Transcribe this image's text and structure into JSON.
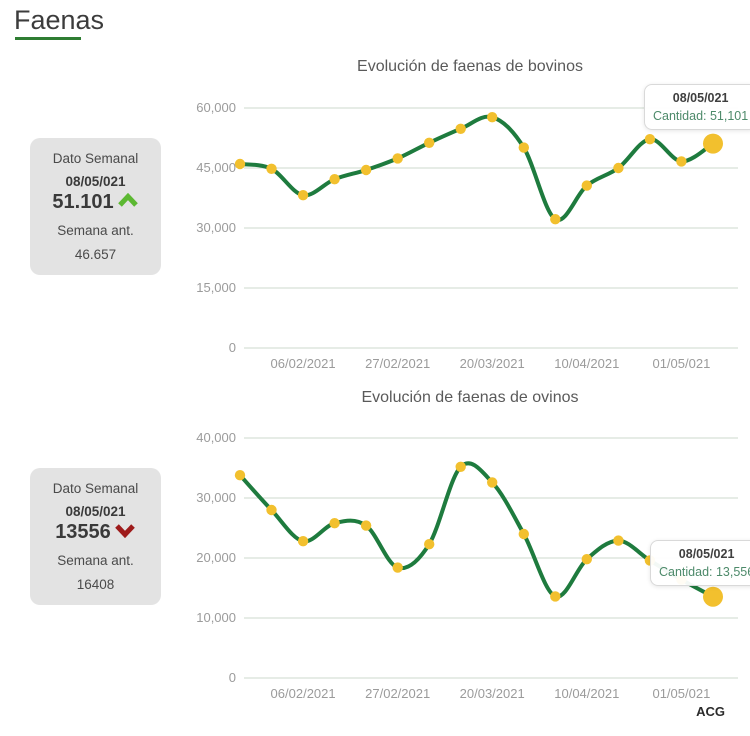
{
  "page": {
    "title": "Faenas",
    "footer": "ACG"
  },
  "colors": {
    "trend_up": "#5cb832",
    "trend_down": "#9e1b1b",
    "line_green": "#1e7b3e",
    "marker_gold": "#f2c02e",
    "accent_underline": "#2e7d32"
  },
  "weekly_cards": [
    {
      "label": "Dato Semanal",
      "date": "08/05/021",
      "value": "51.101",
      "trend": "up",
      "prev_label": "Semana ant.",
      "prev_value": "46.657"
    },
    {
      "label": "Dato Semanal",
      "date": "08/05/021",
      "value": "13556",
      "trend": "down",
      "prev_label": "Semana ant.",
      "prev_value": "16408"
    }
  ],
  "tooltips": [
    {
      "date": "08/05/021",
      "value": "Cantidad: 51,101"
    },
    {
      "date": "08/05/021",
      "value": "Cantidad: 13,556"
    }
  ],
  "chart_data": [
    {
      "type": "line",
      "name": "bovinos",
      "title": "Evolución de faenas de bovinos",
      "values": [
        46000,
        44800,
        38200,
        42200,
        44500,
        47400,
        51300,
        54800,
        57700,
        50100,
        32200,
        40600,
        45000,
        52200,
        46657,
        51101
      ],
      "x_tick_labels": [
        "06/02/2021",
        "27/02/2021",
        "20/03/2021",
        "10/04/2021",
        "01/05/021"
      ],
      "x_tick_indices": [
        2,
        5,
        8,
        11,
        14
      ],
      "y_ticks": [
        0,
        15000,
        30000,
        45000,
        60000
      ],
      "y_tick_labels": [
        "0",
        "15,000",
        "30,000",
        "45,000",
        "60,000"
      ],
      "ylim": [
        0,
        60000
      ],
      "grid": true,
      "legend": false,
      "line_color": "#1e7b3e",
      "marker_color": "#f2c02e",
      "grid_color": "#ccd8cc",
      "highlight_index": 15,
      "highlight_value": 51101
    },
    {
      "type": "line",
      "name": "ovinos",
      "title": "Evolución de faenas de ovinos",
      "values": [
        33800,
        28000,
        22800,
        25800,
        25400,
        18400,
        22300,
        35200,
        32600,
        24000,
        13600,
        19800,
        22900,
        19600,
        16408,
        13556
      ],
      "x_tick_labels": [
        "06/02/2021",
        "27/02/2021",
        "20/03/2021",
        "10/04/2021",
        "01/05/021"
      ],
      "x_tick_indices": [
        2,
        5,
        8,
        11,
        14
      ],
      "y_ticks": [
        0,
        10000,
        20000,
        30000,
        40000
      ],
      "y_tick_labels": [
        "0",
        "10,000",
        "20,000",
        "30,000",
        "40,000"
      ],
      "ylim": [
        0,
        40000
      ],
      "grid": true,
      "legend": false,
      "line_color": "#1e7b3e",
      "marker_color": "#f2c02e",
      "grid_color": "#ccd8cc",
      "highlight_index": 15,
      "highlight_value": 13556
    }
  ]
}
